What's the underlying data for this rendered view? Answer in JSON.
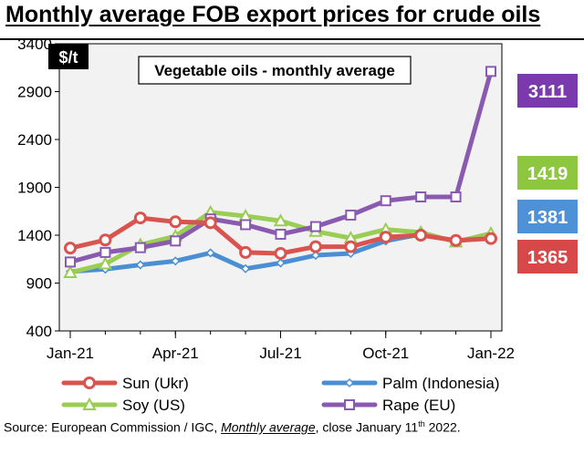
{
  "page_title": "Monthly average FOB export prices for crude oils",
  "footer": {
    "prefix": "Source: European Commission / IGC, ",
    "emphasis": "Monthly average",
    "mid": ", close January 11",
    "sup": "th",
    "suffix": " 2022."
  },
  "chart_data": {
    "type": "line",
    "title": "Vegetable oils - monthly average",
    "ylabel": "$/t",
    "ylim": [
      400,
      3400
    ],
    "yticks": [
      400,
      900,
      1400,
      1900,
      2400,
      2900,
      3400
    ],
    "xtick_labels": [
      "Jan-21",
      "Apr-21",
      "Jul-21",
      "Oct-21",
      "Jan-22"
    ],
    "categories": [
      "Jan-21",
      "Feb-21",
      "Mar-21",
      "Apr-21",
      "May-21",
      "Jun-21",
      "Jul-21",
      "Aug-21",
      "Sep-21",
      "Oct-21",
      "Nov-21",
      "Dec-21",
      "Jan-22"
    ],
    "series": [
      {
        "name": "Sun (Ukr)",
        "color": "#d9534f",
        "marker": "circle",
        "values": [
          1265,
          1350,
          1580,
          1540,
          1530,
          1220,
          1210,
          1280,
          1280,
          1380,
          1400,
          1345,
          1365
        ]
      },
      {
        "name": "Palm (Indonesia)",
        "color": "#4a8fd4",
        "marker": "diamond",
        "values": [
          1020,
          1045,
          1090,
          1130,
          1215,
          1050,
          1110,
          1190,
          1210,
          1340,
          1410,
          1340,
          1381
        ]
      },
      {
        "name": "Soy (US)",
        "color": "#9acd53",
        "marker": "triangle",
        "values": [
          1010,
          1100,
          1300,
          1390,
          1640,
          1600,
          1550,
          1440,
          1370,
          1460,
          1430,
          1330,
          1419
        ]
      },
      {
        "name": "Rape (EU)",
        "color": "#8a5ab0",
        "marker": "square",
        "values": [
          1120,
          1220,
          1270,
          1340,
          1570,
          1510,
          1410,
          1490,
          1610,
          1760,
          1800,
          1800,
          3111
        ]
      }
    ],
    "end_labels": [
      {
        "text": "3111",
        "color": "#7a3aae"
      },
      {
        "text": "1419",
        "color": "#8dc63f"
      },
      {
        "text": "1381",
        "color": "#4e91d6"
      },
      {
        "text": "1365",
        "color": "#d74848"
      }
    ],
    "legend_position": "bottom"
  }
}
